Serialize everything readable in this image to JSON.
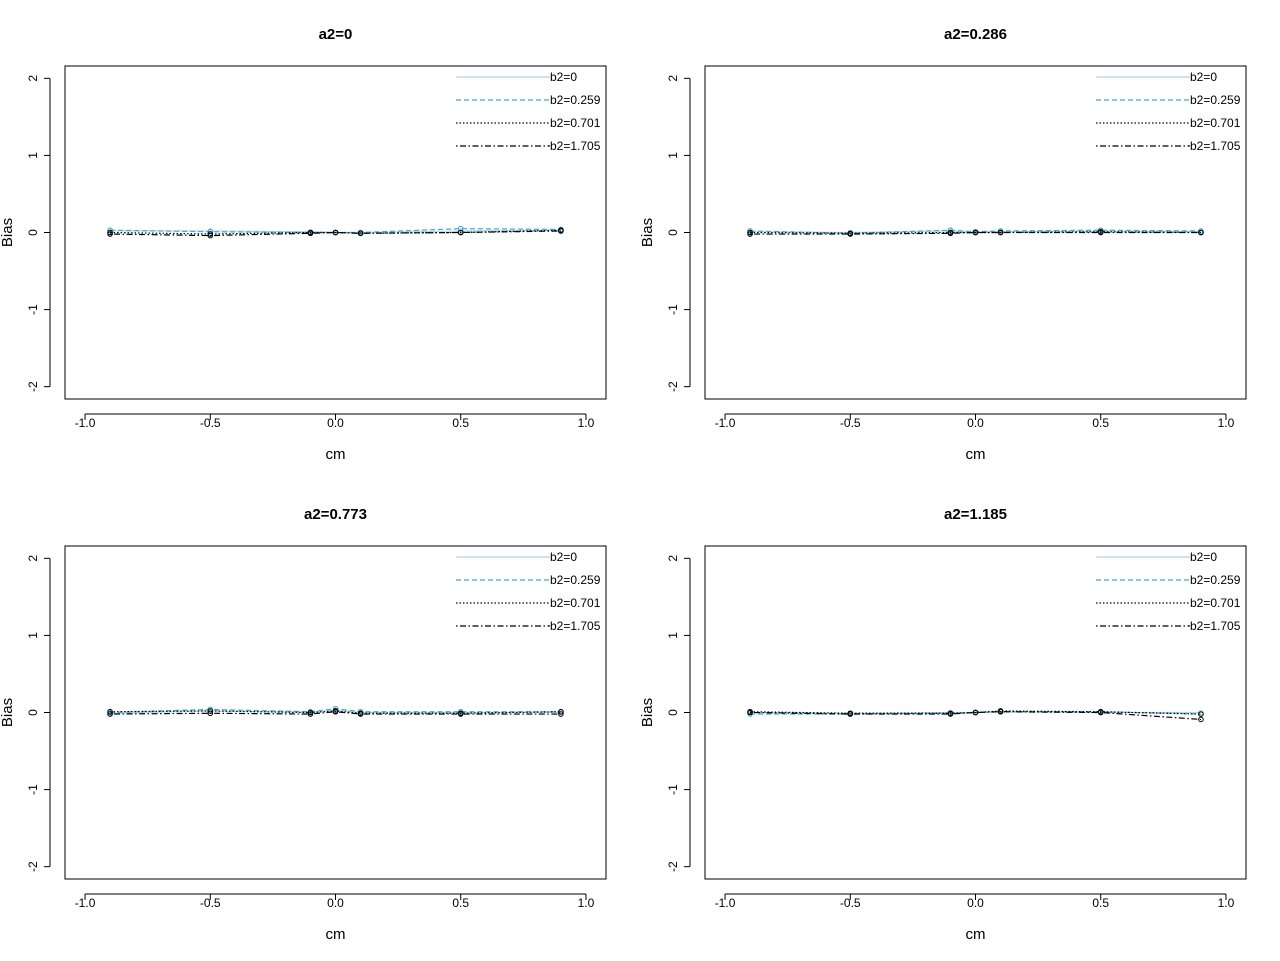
{
  "chart_data": [
    {
      "type": "line",
      "title": "a2=0",
      "xlabel": "cm",
      "ylabel": "Bias",
      "xlim": [
        -1.0,
        1.0
      ],
      "ylim": [
        -2,
        2
      ],
      "x_ticks": [
        "-1.0",
        "-0.5",
        "0.0",
        "0.5",
        "1.0"
      ],
      "y_ticks": [
        "-2",
        "-1",
        "0",
        "1",
        "2"
      ],
      "legend_position": "top-right",
      "grid": false,
      "x": [
        -0.9,
        -0.5,
        -0.1,
        0.0,
        0.1,
        0.5,
        0.9
      ],
      "series": [
        {
          "name": "b2=0",
          "color": "#add8e6",
          "dash": "solid",
          "values": [
            0.02,
            0.02,
            0.01,
            0.0,
            0.0,
            0.02,
            0.03
          ]
        },
        {
          "name": "b2=0.259",
          "color": "#3fa9d8",
          "dash": "dashed",
          "values": [
            0.03,
            0.01,
            0.0,
            0.0,
            0.0,
            0.05,
            0.04
          ]
        },
        {
          "name": "b2=0.701",
          "color": "#000000",
          "dash": "dotted",
          "values": [
            0.0,
            -0.02,
            0.0,
            0.0,
            -0.01,
            0.0,
            0.03
          ]
        },
        {
          "name": "b2=1.705",
          "color": "#000000",
          "dash": "dotdash",
          "values": [
            -0.02,
            -0.04,
            -0.01,
            0.0,
            -0.01,
            0.0,
            0.02
          ]
        }
      ]
    },
    {
      "type": "line",
      "title": "a2=0.286",
      "xlabel": "cm",
      "ylabel": "Bias",
      "xlim": [
        -1.0,
        1.0
      ],
      "ylim": [
        -2,
        2
      ],
      "x_ticks": [
        "-1.0",
        "-0.5",
        "0.0",
        "0.5",
        "1.0"
      ],
      "y_ticks": [
        "-2",
        "-1",
        "0",
        "1",
        "2"
      ],
      "legend_position": "top-right",
      "grid": false,
      "x": [
        -0.9,
        -0.5,
        -0.1,
        0.0,
        0.1,
        0.5,
        0.9
      ],
      "series": [
        {
          "name": "b2=0",
          "color": "#add8e6",
          "dash": "solid",
          "values": [
            0.01,
            0.0,
            0.02,
            0.0,
            0.01,
            0.02,
            0.01
          ]
        },
        {
          "name": "b2=0.259",
          "color": "#3fa9d8",
          "dash": "dashed",
          "values": [
            0.02,
            -0.01,
            0.03,
            0.01,
            0.02,
            0.03,
            0.02
          ]
        },
        {
          "name": "b2=0.701",
          "color": "#000000",
          "dash": "dotted",
          "values": [
            0.0,
            -0.01,
            0.0,
            0.0,
            0.0,
            0.01,
            0.0
          ]
        },
        {
          "name": "b2=1.705",
          "color": "#000000",
          "dash": "dotdash",
          "values": [
            -0.02,
            -0.02,
            -0.01,
            0.0,
            0.0,
            0.0,
            0.0
          ]
        }
      ]
    },
    {
      "type": "line",
      "title": "a2=0.773",
      "xlabel": "cm",
      "ylabel": "Bias",
      "xlim": [
        -1.0,
        1.0
      ],
      "ylim": [
        -2,
        2
      ],
      "x_ticks": [
        "-1.0",
        "-0.5",
        "0.0",
        "0.5",
        "1.0"
      ],
      "y_ticks": [
        "-2",
        "-1",
        "0",
        "1",
        "2"
      ],
      "legend_position": "top-right",
      "grid": false,
      "x": [
        -0.9,
        -0.5,
        -0.1,
        0.0,
        0.1,
        0.5,
        0.9
      ],
      "series": [
        {
          "name": "b2=0",
          "color": "#add8e6",
          "dash": "solid",
          "values": [
            -0.01,
            0.02,
            0.0,
            0.03,
            0.0,
            0.0,
            0.0
          ]
        },
        {
          "name": "b2=0.259",
          "color": "#3fa9d8",
          "dash": "dashed",
          "values": [
            0.0,
            0.04,
            0.01,
            0.05,
            0.01,
            0.01,
            0.01
          ]
        },
        {
          "name": "b2=0.701",
          "color": "#000000",
          "dash": "dotted",
          "values": [
            0.01,
            0.02,
            0.0,
            0.02,
            -0.01,
            -0.01,
            0.01
          ]
        },
        {
          "name": "b2=1.705",
          "color": "#000000",
          "dash": "dotdash",
          "values": [
            -0.02,
            -0.01,
            -0.02,
            0.01,
            -0.02,
            -0.02,
            -0.02
          ]
        }
      ]
    },
    {
      "type": "line",
      "title": "a2=1.185",
      "xlabel": "cm",
      "ylabel": "Bias",
      "xlim": [
        -1.0,
        1.0
      ],
      "ylim": [
        -2,
        2
      ],
      "x_ticks": [
        "-1.0",
        "-0.5",
        "0.0",
        "0.5",
        "1.0"
      ],
      "y_ticks": [
        "-2",
        "-1",
        "0",
        "1",
        "2"
      ],
      "legend_position": "top-right",
      "grid": false,
      "x": [
        -0.9,
        -0.5,
        -0.1,
        0.0,
        0.1,
        0.5,
        0.9
      ],
      "series": [
        {
          "name": "b2=0",
          "color": "#add8e6",
          "dash": "solid",
          "values": [
            0.0,
            -0.01,
            0.0,
            0.0,
            0.01,
            0.0,
            0.0
          ]
        },
        {
          "name": "b2=0.259",
          "color": "#3fa9d8",
          "dash": "dashed",
          "values": [
            -0.02,
            -0.02,
            -0.01,
            0.0,
            0.01,
            0.01,
            -0.02
          ]
        },
        {
          "name": "b2=0.701",
          "color": "#000000",
          "dash": "dotted",
          "values": [
            0.01,
            -0.01,
            -0.01,
            0.0,
            0.02,
            0.01,
            -0.02
          ]
        },
        {
          "name": "b2=1.705",
          "color": "#000000",
          "dash": "dotdash",
          "values": [
            0.0,
            -0.02,
            -0.02,
            0.0,
            0.01,
            0.0,
            -0.09
          ]
        }
      ]
    }
  ]
}
